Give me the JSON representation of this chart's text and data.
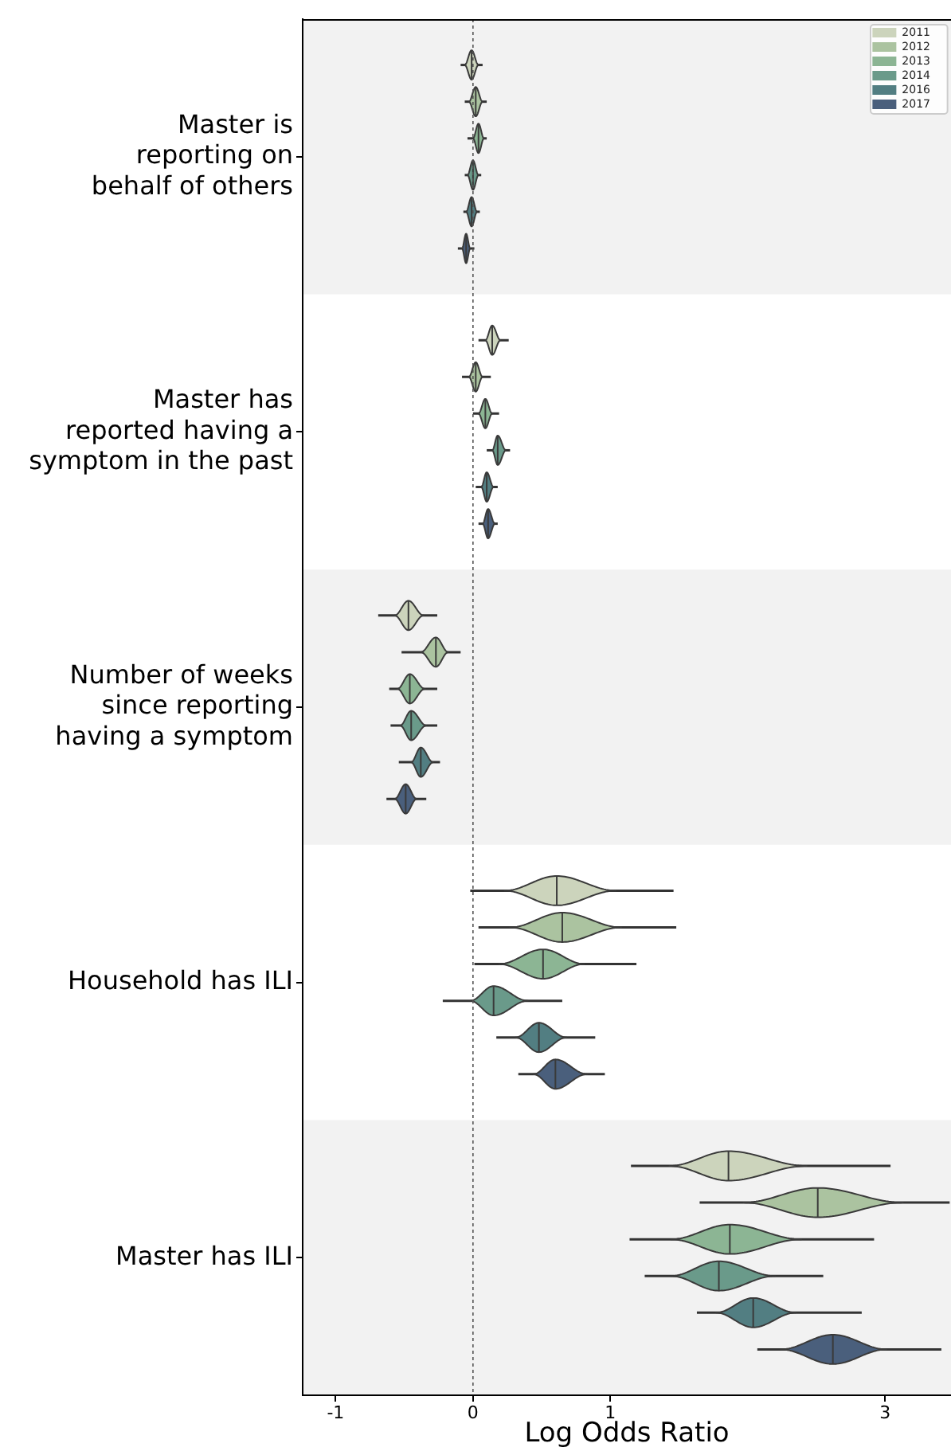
{
  "chart_data": {
    "type": "box",
    "orientation": "horizontal",
    "categories": [
      "Master is\nreporting on\nbehalf of others",
      "Master has\nreported having a\nsymptom in the past",
      "Number of weeks\nsince reporting\nhaving a symptom",
      "Household has ILI",
      "Master has ILI"
    ],
    "series": [
      {
        "name": "2011",
        "color": "#ccd4bc",
        "boxes": [
          {
            "low": -0.09,
            "q1": -0.06,
            "median": -0.01,
            "q3": 0.04,
            "high": 0.07
          },
          {
            "low": 0.04,
            "q1": 0.09,
            "median": 0.14,
            "q3": 0.2,
            "high": 0.26
          },
          {
            "low": -0.69,
            "q1": -0.57,
            "median": -0.47,
            "q3": -0.36,
            "high": -0.26
          },
          {
            "low": -0.02,
            "q1": 0.23,
            "median": 0.61,
            "q3": 1.04,
            "high": 1.46
          },
          {
            "low": 1.15,
            "q1": 1.43,
            "median": 1.86,
            "q3": 2.43,
            "high": 3.04
          }
        ]
      },
      {
        "name": "2012",
        "color": "#abc3a0",
        "boxes": [
          {
            "low": -0.06,
            "q1": -0.03,
            "median": 0.02,
            "q3": 0.07,
            "high": 0.1
          },
          {
            "low": -0.08,
            "q1": -0.03,
            "median": 0.02,
            "q3": 0.07,
            "high": 0.13
          },
          {
            "low": -0.52,
            "q1": -0.38,
            "median": -0.27,
            "q3": -0.18,
            "high": -0.09
          },
          {
            "low": 0.04,
            "q1": 0.27,
            "median": 0.65,
            "q3": 1.08,
            "high": 1.48
          },
          {
            "low": 1.65,
            "q1": 1.97,
            "median": 2.51,
            "q3": 3.13,
            "high": 3.47
          }
        ]
      },
      {
        "name": "2013",
        "color": "#8cb594",
        "boxes": [
          {
            "low": -0.04,
            "q1": 0.0,
            "median": 0.04,
            "q3": 0.08,
            "high": 0.1
          },
          {
            "low": 0.0,
            "q1": 0.04,
            "median": 0.09,
            "q3": 0.14,
            "high": 0.19
          },
          {
            "low": -0.61,
            "q1": -0.55,
            "median": -0.46,
            "q3": -0.35,
            "high": -0.26
          },
          {
            "low": 0.01,
            "q1": 0.19,
            "median": 0.51,
            "q3": 0.81,
            "high": 1.19
          },
          {
            "low": 1.14,
            "q1": 1.44,
            "median": 1.87,
            "q3": 2.39,
            "high": 2.92
          }
        ]
      },
      {
        "name": "2014",
        "color": "#6a9a8a",
        "boxes": [
          {
            "low": -0.06,
            "q1": -0.04,
            "median": 0.0,
            "q3": 0.04,
            "high": 0.06
          },
          {
            "low": 0.1,
            "q1": 0.14,
            "median": 0.18,
            "q3": 0.24,
            "high": 0.27
          },
          {
            "low": -0.6,
            "q1": -0.53,
            "median": -0.45,
            "q3": -0.34,
            "high": -0.26
          },
          {
            "low": -0.22,
            "q1": -0.02,
            "median": 0.15,
            "q3": 0.4,
            "high": 0.65
          },
          {
            "low": 1.25,
            "q1": 1.44,
            "median": 1.79,
            "q3": 2.2,
            "high": 2.55
          }
        ]
      },
      {
        "name": "2016",
        "color": "#527e82",
        "boxes": [
          {
            "low": -0.07,
            "q1": -0.05,
            "median": -0.01,
            "q3": 0.03,
            "high": 0.05
          },
          {
            "low": 0.02,
            "q1": 0.06,
            "median": 0.1,
            "q3": 0.15,
            "high": 0.18
          },
          {
            "low": -0.54,
            "q1": -0.45,
            "median": -0.38,
            "q3": -0.29,
            "high": -0.24
          },
          {
            "low": 0.17,
            "q1": 0.31,
            "median": 0.48,
            "q3": 0.68,
            "high": 0.89
          },
          {
            "low": 1.63,
            "q1": 1.77,
            "median": 2.04,
            "q3": 2.35,
            "high": 2.83
          }
        ]
      },
      {
        "name": "2017",
        "color": "#4a5f7c",
        "boxes": [
          {
            "low": -0.11,
            "q1": -0.08,
            "median": -0.05,
            "q3": -0.02,
            "high": 0.01
          },
          {
            "low": 0.04,
            "q1": 0.07,
            "median": 0.11,
            "q3": 0.16,
            "high": 0.18
          },
          {
            "low": -0.63,
            "q1": -0.57,
            "median": -0.49,
            "q3": -0.41,
            "high": -0.34
          },
          {
            "low": 0.33,
            "q1": 0.44,
            "median": 0.6,
            "q3": 0.83,
            "high": 0.96
          },
          {
            "low": 2.07,
            "q1": 2.24,
            "median": 2.62,
            "q3": 3.01,
            "high": 3.41
          }
        ]
      }
    ],
    "xlabel": "Log Odds Ratio",
    "xlim": [
      -1.24,
      3.48
    ],
    "xticks": [
      -1,
      0,
      1,
      3
    ],
    "ref_lines": [
      {
        "axis": "x",
        "value": 0,
        "line_style": "dotted",
        "color": "#555555"
      }
    ],
    "bands": [
      {
        "axis": "y",
        "from": "Master is\nreporting on\nbehalf of others",
        "to": "Master is\nreporting on\nbehalf of others",
        "color": "#f2f2f2"
      },
      {
        "axis": "y",
        "from": "Number of weeks\nsince reporting\nhaving a symptom",
        "to": "Number of weeks\nsince reporting\nhaving a symptom",
        "color": "#f2f2f2"
      },
      {
        "axis": "y",
        "from": "Master has ILI",
        "to": "Master has ILI",
        "color": "#f2f2f2"
      }
    ],
    "legend": "top right",
    "grid": false
  }
}
